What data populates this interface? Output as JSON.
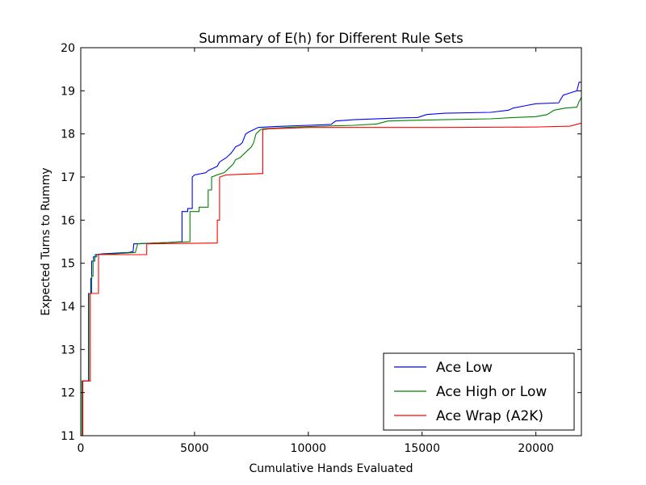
{
  "chart_data": {
    "type": "line",
    "title": "Summary of E(h) for Different Rule Sets",
    "xlabel": "Cumulative Hands Evaluated",
    "ylabel": "Expected Turns to Rummy",
    "xlim": [
      0,
      22000
    ],
    "ylim": [
      11,
      20
    ],
    "xticks": [
      0,
      5000,
      10000,
      15000,
      20000
    ],
    "xtick_labels": [
      "0",
      "5000",
      "10000",
      "15000",
      "20000"
    ],
    "yticks": [
      11,
      12,
      13,
      14,
      15,
      16,
      17,
      18,
      19,
      20
    ],
    "ytick_labels": [
      "11",
      "12",
      "13",
      "14",
      "15",
      "16",
      "17",
      "18",
      "19",
      "20"
    ],
    "grid": false,
    "legend_position": "lower-right",
    "series": [
      {
        "name": "Ace Low",
        "color": "#0000ff",
        "points": [
          [
            0,
            11.0
          ],
          [
            60,
            11.0
          ],
          [
            60,
            12.27
          ],
          [
            340,
            12.27
          ],
          [
            340,
            14.3
          ],
          [
            440,
            14.3
          ],
          [
            440,
            14.65
          ],
          [
            480,
            14.65
          ],
          [
            480,
            15.05
          ],
          [
            560,
            15.05
          ],
          [
            560,
            15.15
          ],
          [
            640,
            15.15
          ],
          [
            640,
            15.2
          ],
          [
            1000,
            15.22
          ],
          [
            2100,
            15.25
          ],
          [
            2300,
            15.27
          ],
          [
            2330,
            15.45
          ],
          [
            3800,
            15.48
          ],
          [
            4450,
            15.5
          ],
          [
            4450,
            16.2
          ],
          [
            4700,
            16.2
          ],
          [
            4700,
            16.27
          ],
          [
            4900,
            16.27
          ],
          [
            4900,
            17.0
          ],
          [
            5000,
            17.05
          ],
          [
            5500,
            17.1
          ],
          [
            5600,
            17.15
          ],
          [
            5800,
            17.2
          ],
          [
            6000,
            17.25
          ],
          [
            6100,
            17.35
          ],
          [
            6400,
            17.45
          ],
          [
            6600,
            17.55
          ],
          [
            6700,
            17.62
          ],
          [
            6800,
            17.7
          ],
          [
            7000,
            17.75
          ],
          [
            7100,
            17.8
          ],
          [
            7250,
            18.0
          ],
          [
            7400,
            18.05
          ],
          [
            7600,
            18.1
          ],
          [
            7800,
            18.15
          ],
          [
            8500,
            18.17
          ],
          [
            10000,
            18.2
          ],
          [
            11000,
            18.22
          ],
          [
            11200,
            18.3
          ],
          [
            12000,
            18.33
          ],
          [
            14000,
            18.37
          ],
          [
            14800,
            18.38
          ],
          [
            15200,
            18.45
          ],
          [
            16000,
            18.48
          ],
          [
            18000,
            18.5
          ],
          [
            18800,
            18.55
          ],
          [
            19000,
            18.6
          ],
          [
            19500,
            18.65
          ],
          [
            20000,
            18.7
          ],
          [
            21000,
            18.72
          ],
          [
            21200,
            18.9
          ],
          [
            21500,
            18.95
          ],
          [
            21800,
            19.0
          ],
          [
            21900,
            19.2
          ],
          [
            22000,
            19.2
          ]
        ]
      },
      {
        "name": "Ace High or Low",
        "color": "#008000",
        "points": [
          [
            0,
            11.0
          ],
          [
            60,
            11.0
          ],
          [
            60,
            12.27
          ],
          [
            360,
            12.27
          ],
          [
            360,
            14.3
          ],
          [
            480,
            14.3
          ],
          [
            480,
            14.7
          ],
          [
            540,
            14.7
          ],
          [
            540,
            15.05
          ],
          [
            620,
            15.05
          ],
          [
            620,
            15.15
          ],
          [
            700,
            15.15
          ],
          [
            700,
            15.2
          ],
          [
            1500,
            15.22
          ],
          [
            2400,
            15.25
          ],
          [
            2500,
            15.45
          ],
          [
            3800,
            15.48
          ],
          [
            4800,
            15.5
          ],
          [
            4800,
            16.2
          ],
          [
            5200,
            16.2
          ],
          [
            5200,
            16.3
          ],
          [
            5600,
            16.3
          ],
          [
            5600,
            16.7
          ],
          [
            5750,
            16.7
          ],
          [
            5750,
            17.0
          ],
          [
            6000,
            17.05
          ],
          [
            6300,
            17.1
          ],
          [
            6500,
            17.2
          ],
          [
            6700,
            17.3
          ],
          [
            6800,
            17.4
          ],
          [
            7000,
            17.45
          ],
          [
            7200,
            17.55
          ],
          [
            7500,
            17.7
          ],
          [
            7600,
            17.8
          ],
          [
            7700,
            18.0
          ],
          [
            7900,
            18.1
          ],
          [
            8000,
            18.12
          ],
          [
            9000,
            18.15
          ],
          [
            10000,
            18.17
          ],
          [
            12000,
            18.2
          ],
          [
            13000,
            18.23
          ],
          [
            13500,
            18.3
          ],
          [
            15000,
            18.32
          ],
          [
            18000,
            18.35
          ],
          [
            19000,
            18.38
          ],
          [
            20000,
            18.4
          ],
          [
            20500,
            18.45
          ],
          [
            20800,
            18.55
          ],
          [
            21300,
            18.6
          ],
          [
            21800,
            18.62
          ],
          [
            21900,
            18.75
          ],
          [
            22000,
            18.85
          ]
        ]
      },
      {
        "name": "Ace Wrap (A2K)",
        "color": "#ff0000",
        "points": [
          [
            0,
            11.0
          ],
          [
            90,
            11.0
          ],
          [
            90,
            12.27
          ],
          [
            420,
            12.27
          ],
          [
            420,
            14.3
          ],
          [
            780,
            14.3
          ],
          [
            780,
            15.2
          ],
          [
            2900,
            15.2
          ],
          [
            2900,
            15.45
          ],
          [
            6000,
            15.47
          ],
          [
            6000,
            16.0
          ],
          [
            6100,
            16.0
          ],
          [
            6100,
            17.0
          ],
          [
            6400,
            17.05
          ],
          [
            8000,
            17.08
          ],
          [
            8000,
            18.1
          ],
          [
            8300,
            18.12
          ],
          [
            10000,
            18.15
          ],
          [
            16000,
            18.15
          ],
          [
            20000,
            18.16
          ],
          [
            21500,
            18.18
          ],
          [
            22000,
            18.25
          ]
        ]
      }
    ]
  }
}
